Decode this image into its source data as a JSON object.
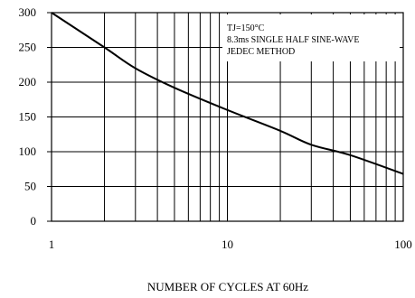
{
  "chart_data": {
    "type": "line",
    "x_scale": "log",
    "xlim": [
      1,
      100
    ],
    "ylim": [
      0,
      300
    ],
    "grid": true,
    "xlabel": "NUMBER OF CYCLES AT 60Hz",
    "ylabel": "",
    "title": "",
    "y_ticks": [
      "300",
      "250",
      "200",
      "150",
      "100",
      "50",
      "0"
    ],
    "y_tick_values": [
      300,
      250,
      200,
      150,
      100,
      50,
      0
    ],
    "x_ticks": [
      "1",
      "10",
      "100"
    ],
    "x_tick_values": [
      1,
      10,
      100
    ],
    "annotations": [
      "TJ=150°C",
      "8.3ms SINGLE HALF SINE-WAVE",
      "JEDEC METHOD"
    ],
    "series": [
      {
        "x": [
          1,
          2,
          3,
          5,
          10,
          20,
          30,
          50,
          100
        ],
        "y": [
          300,
          250,
          220,
          192,
          160,
          130,
          110,
          95,
          68
        ]
      }
    ]
  }
}
